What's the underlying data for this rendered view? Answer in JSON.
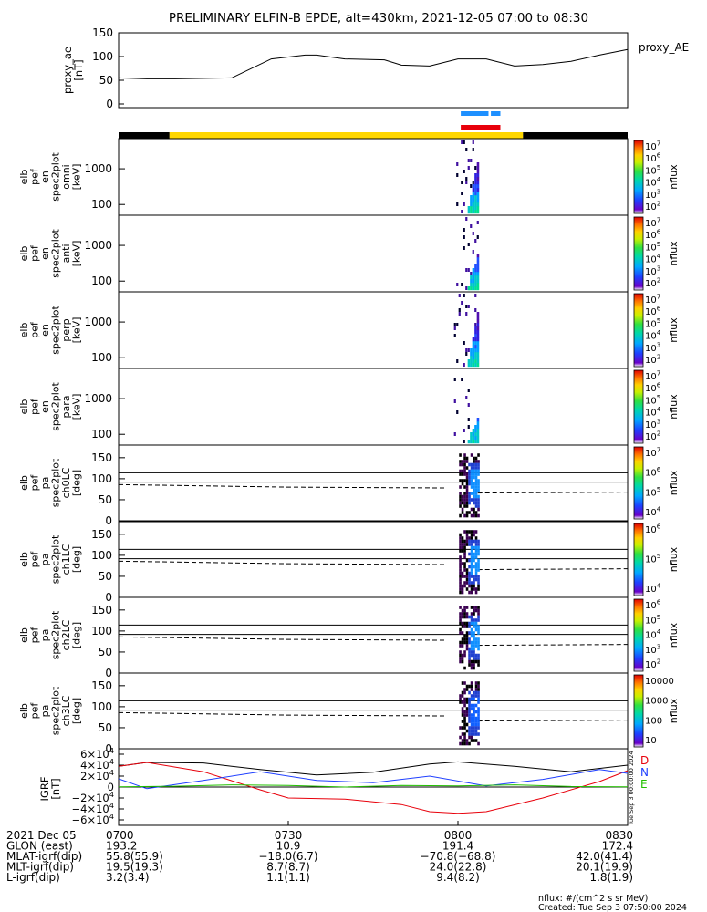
{
  "chart_data": {
    "type": "spectrogram-stack",
    "title": "PRELIMINARY ELFIN-B EPDE, alt=430km, 2021-12-05 07:00 to 08:30",
    "time_range_hhmm": [
      "07:00",
      "08:30"
    ],
    "ae_panel": {
      "ylabel_lines": [
        "proxy_ae",
        "[nT]"
      ],
      "legend": "proxy_AE",
      "ylim": [
        0,
        150
      ],
      "yticks": [
        "150",
        "100",
        "50",
        "0"
      ],
      "ytick_values": [
        150,
        100,
        50,
        0
      ],
      "series": {
        "name": "proxy_AE",
        "t_min": [
          0,
          5,
          10,
          20,
          27,
          33,
          35,
          40,
          47,
          50,
          55,
          60,
          65,
          70,
          75,
          80,
          85,
          90
        ],
        "values": [
          55,
          53,
          53,
          55,
          95,
          103,
          103,
          95,
          93,
          82,
          80,
          95,
          95,
          80,
          83,
          90,
          103,
          115
        ]
      }
    },
    "status_bars": {
      "segments_top": [
        {
          "from_min": 0,
          "to_min": 9,
          "color": "#000000"
        },
        {
          "from_min": 9,
          "to_min": 71.5,
          "color": "#ffd700"
        },
        {
          "from_min": 71.5,
          "to_min": 90,
          "color": "#000000"
        }
      ],
      "indicator_blue": {
        "from_min": 60.5,
        "to_min": 67.5,
        "color": "#1e90ff"
      },
      "indicator_red": {
        "from_min": 60.5,
        "to_min": 67.5,
        "color": "#e8000b"
      }
    },
    "energy_panels": [
      {
        "label_lines": [
          "elb",
          "pef",
          "en",
          "spec2plot",
          "omni",
          "[keV]"
        ],
        "yticks": [
          "1000",
          "100"
        ],
        "ytick_values": [
          1000,
          100
        ],
        "ylim": [
          50,
          7000
        ],
        "cbar_ticks": [
          "10^2",
          "10^3",
          "10^4",
          "10^5",
          "10^6",
          "10^7"
        ],
        "cbar_label": "nflux"
      },
      {
        "label_lines": [
          "elb",
          "pef",
          "en",
          "spec2plot",
          "anti",
          "[keV]"
        ],
        "yticks": [
          "1000",
          "100"
        ],
        "ytick_values": [
          1000,
          100
        ],
        "ylim": [
          50,
          7000
        ],
        "cbar_ticks": [
          "10^2",
          "10^3",
          "10^4",
          "10^5",
          "10^6",
          "10^7"
        ],
        "cbar_label": "nflux"
      },
      {
        "label_lines": [
          "elb",
          "pef",
          "en",
          "spec2plot",
          "perp",
          "[keV]"
        ],
        "yticks": [
          "1000",
          "100"
        ],
        "ytick_values": [
          1000,
          100
        ],
        "ylim": [
          50,
          7000
        ],
        "cbar_ticks": [
          "10^2",
          "10^3",
          "10^4",
          "10^5",
          "10^6",
          "10^7"
        ],
        "cbar_label": "nflux"
      },
      {
        "label_lines": [
          "elb",
          "pef",
          "en",
          "spec2plot",
          "para",
          "[keV]"
        ],
        "yticks": [
          "1000",
          "100"
        ],
        "ytick_values": [
          1000,
          100
        ],
        "ylim": [
          50,
          7000
        ],
        "cbar_ticks": [
          "10^2",
          "10^3",
          "10^4",
          "10^5",
          "10^6",
          "10^7"
        ],
        "cbar_label": "nflux"
      }
    ],
    "pitch_panels": [
      {
        "label_lines": [
          "elb",
          "pef",
          "pa",
          "spec2plot",
          "ch0LC",
          "[deg]"
        ],
        "yticks": [
          "150",
          "100",
          "50",
          "0"
        ],
        "ytick_values": [
          150,
          100,
          50,
          0
        ],
        "ylim": [
          0,
          180
        ],
        "cbar_ticks": [
          "10^4",
          "10^5",
          "10^6",
          "10^7"
        ],
        "cbar_label": "nflux"
      },
      {
        "label_lines": [
          "elb",
          "pef",
          "pa",
          "spec2plot",
          "ch1LC",
          "[deg]"
        ],
        "yticks": [
          "150",
          "100",
          "50",
          "0"
        ],
        "ytick_values": [
          150,
          100,
          50,
          0
        ],
        "ylim": [
          0,
          180
        ],
        "cbar_ticks": [
          "10^4",
          "10^5",
          "10^6"
        ],
        "cbar_label": "nflux"
      },
      {
        "label_lines": [
          "elb",
          "pef",
          "pa",
          "spec2plot",
          "ch2LC",
          "[deg]"
        ],
        "yticks": [
          "150",
          "100",
          "50",
          "0"
        ],
        "ytick_values": [
          150,
          100,
          50,
          0
        ],
        "ylim": [
          0,
          180
        ],
        "cbar_ticks": [
          "10^2",
          "10^3",
          "10^4",
          "10^5",
          "10^6"
        ],
        "cbar_label": "nflux"
      },
      {
        "label_lines": [
          "elb",
          "pef",
          "pa",
          "spec2plot",
          "ch3LC",
          "[deg]"
        ],
        "yticks": [
          "150",
          "100",
          "50",
          "0"
        ],
        "ytick_values": [
          150,
          100,
          50,
          0
        ],
        "ylim": [
          0,
          180
        ],
        "cbar_ticks": [
          "10",
          "100",
          "1000",
          "10000"
        ],
        "cbar_label": "nflux"
      }
    ],
    "igrf_panel": {
      "ylabel_lines": [
        "IGRF",
        "[nT]"
      ],
      "yticks": [
        "6×10^4",
        "4×10^4",
        "2×10^4",
        "0",
        "−2×10^4",
        "−4×10^4",
        "−6×10^4"
      ],
      "ytick_values": [
        60000,
        40000,
        20000,
        0,
        -20000,
        -40000,
        -60000
      ],
      "ylim": [
        -70000,
        70000
      ],
      "legend": [
        {
          "name": "D",
          "color": "#e8000b"
        },
        {
          "name": "N",
          "color": "#1f3fff"
        },
        {
          "name": "E",
          "color": "#22c000"
        }
      ],
      "side_note": "Tue Sep 3 00:00:00 2024",
      "series": [
        {
          "name": "total",
          "color": "#000000",
          "t_min": [
            0,
            5,
            15,
            25,
            35,
            45,
            55,
            60,
            70,
            80,
            90
          ],
          "values": [
            38000,
            45000,
            44000,
            32000,
            22000,
            27000,
            42000,
            46000,
            38000,
            28000,
            40000
          ]
        },
        {
          "name": "D",
          "color": "#e8000b",
          "t_min": [
            0,
            5,
            15,
            25,
            30,
            40,
            50,
            55,
            60,
            65,
            75,
            85,
            90
          ],
          "values": [
            38000,
            45000,
            28000,
            -5000,
            -20000,
            -22000,
            -32000,
            -45000,
            -48000,
            -45000,
            -20000,
            10000,
            30000
          ]
        },
        {
          "name": "N",
          "color": "#1f3fff",
          "t_min": [
            0,
            5,
            15,
            25,
            35,
            45,
            55,
            65,
            75,
            85,
            90
          ],
          "values": [
            15000,
            -3000,
            12000,
            28000,
            12000,
            8000,
            20000,
            2000,
            14000,
            32000,
            25000
          ]
        },
        {
          "name": "E",
          "color": "#22c000",
          "t_min": [
            0,
            10,
            20,
            30,
            40,
            50,
            60,
            70,
            80,
            90
          ],
          "values": [
            500,
            1500,
            4000,
            3000,
            0,
            3000,
            2000,
            4000,
            1000,
            500
          ]
        }
      ]
    },
    "x_axis": {
      "tick_labels": [
        "0700",
        "0730",
        "0800",
        "0830"
      ],
      "tick_min": [
        0,
        30,
        60,
        90
      ],
      "rows": [
        {
          "label": "2021 Dec 05",
          "values": [
            "0700",
            "0730",
            "0800",
            "0830"
          ]
        },
        {
          "label": "GLON (east)",
          "values": [
            "193.2",
            "10.9",
            "191.4",
            "172.4"
          ]
        },
        {
          "label": "MLAT-igrf(dip)",
          "values": [
            "55.8(55.9)",
            "−18.0(6.7)",
            "−70.8(−68.8)",
            "42.0(41.4)"
          ]
        },
        {
          "label": "MLT-igrf(dip)",
          "values": [
            "19.5(19.3)",
            "8.7(8.7)",
            "24.0(22.8)",
            "20.1(19.9)"
          ]
        },
        {
          "label": "L-igrf(dip)",
          "values": [
            "3.2(3.4)",
            "1.1(1.1)",
            "9.4(8.2)",
            "1.8(1.9)"
          ]
        }
      ]
    },
    "footer_lines": [
      "nflux: #/(cm^2 s sr MeV)",
      "Created: Tue Sep  3 07:50:00 2024"
    ]
  }
}
